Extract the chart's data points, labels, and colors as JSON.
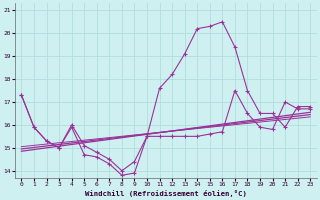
{
  "background_color": "#cff0f0",
  "grid_color": "#b0dede",
  "line_color": "#993399",
  "xlabel": "Windchill (Refroidissement éolien,°C)",
  "xlim": [
    -0.5,
    23.5
  ],
  "ylim": [
    13.7,
    21.3
  ],
  "yticks": [
    14,
    15,
    16,
    17,
    18,
    19,
    20,
    21
  ],
  "xticks": [
    0,
    1,
    2,
    3,
    4,
    5,
    6,
    7,
    8,
    9,
    10,
    11,
    12,
    13,
    14,
    15,
    16,
    17,
    18,
    19,
    20,
    21,
    22,
    23
  ],
  "series_main_x": [
    0,
    1,
    2,
    3,
    4,
    5,
    6,
    7,
    8,
    9,
    10,
    11,
    12,
    13,
    14,
    15,
    16,
    17,
    18,
    19,
    20,
    21,
    22,
    23
  ],
  "series_main_y": [
    17.3,
    15.9,
    15.3,
    15.0,
    16.0,
    15.1,
    14.8,
    14.5,
    14.0,
    14.4,
    15.5,
    17.6,
    18.2,
    19.1,
    20.2,
    20.3,
    20.5,
    19.4,
    17.5,
    16.5,
    16.5,
    15.9,
    16.8,
    16.8
  ],
  "series_low_x": [
    0,
    1,
    2,
    3,
    4,
    5,
    6,
    7,
    8,
    9,
    10,
    11,
    12,
    13,
    14,
    15,
    16,
    17,
    18,
    19,
    20,
    21,
    22,
    23
  ],
  "series_low_y": [
    17.3,
    15.9,
    15.3,
    15.0,
    15.9,
    14.7,
    14.6,
    14.3,
    13.8,
    13.9,
    15.5,
    15.5,
    15.5,
    15.5,
    15.5,
    15.6,
    15.7,
    17.5,
    16.5,
    15.9,
    15.8,
    17.0,
    16.7,
    16.7
  ],
  "trend1_x": [
    0,
    23
  ],
  "trend1_y": [
    14.85,
    16.55
  ],
  "trend2_x": [
    0,
    23
  ],
  "trend2_y": [
    14.95,
    16.45
  ],
  "trend3_x": [
    0,
    23
  ],
  "trend3_y": [
    15.05,
    16.35
  ]
}
